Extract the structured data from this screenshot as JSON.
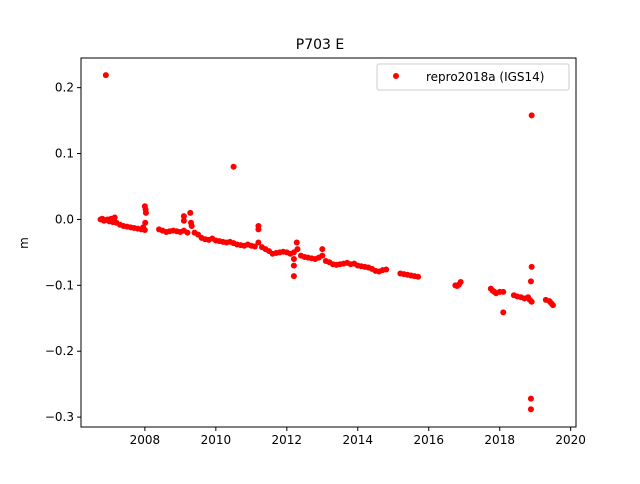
{
  "chart_data": {
    "type": "scatter",
    "title": "P703 E",
    "xlabel": "",
    "ylabel": "m",
    "xlim": [
      2006.2,
      2020.15
    ],
    "ylim": [
      -0.315,
      0.245
    ],
    "xticks": [
      2008,
      2010,
      2012,
      2014,
      2016,
      2018,
      2020
    ],
    "yticks": [
      0.2,
      0.1,
      0.0,
      -0.1,
      -0.2,
      -0.3
    ],
    "ytick_labels": [
      "0.2",
      "0.1",
      "0.0",
      "−0.1",
      "−0.2",
      "−0.3"
    ],
    "grid": false,
    "legend_position": "top-right",
    "series": [
      {
        "name": "repro2018a (IGS14)",
        "color": "#ff0000",
        "marker": "circle",
        "points": [
          [
            2006.75,
            0.0
          ],
          [
            2006.8,
            0.001
          ],
          [
            2006.85,
            -0.002
          ],
          [
            2006.9,
            -0.001
          ],
          [
            2006.95,
            0.0
          ],
          [
            2007.0,
            -0.003
          ],
          [
            2007.05,
            0.001
          ],
          [
            2007.1,
            -0.004
          ],
          [
            2007.15,
            0.003
          ],
          [
            2007.2,
            -0.005
          ],
          [
            2007.3,
            -0.008
          ],
          [
            2007.4,
            -0.01
          ],
          [
            2007.5,
            -0.011
          ],
          [
            2007.6,
            -0.012
          ],
          [
            2007.7,
            -0.013
          ],
          [
            2007.8,
            -0.014
          ],
          [
            2007.9,
            -0.015
          ],
          [
            2007.95,
            -0.012
          ],
          [
            2008.0,
            -0.016
          ],
          [
            2008.0,
            0.02
          ],
          [
            2008.02,
            0.015
          ],
          [
            2008.03,
            0.01
          ],
          [
            2008.01,
            -0.005
          ],
          [
            2006.9,
            0.219
          ],
          [
            2008.4,
            -0.015
          ],
          [
            2008.5,
            -0.017
          ],
          [
            2008.6,
            -0.019
          ],
          [
            2008.7,
            -0.018
          ],
          [
            2008.8,
            -0.017
          ],
          [
            2008.9,
            -0.018
          ],
          [
            2009.0,
            -0.019
          ],
          [
            2009.1,
            -0.017
          ],
          [
            2009.1,
            0.005
          ],
          [
            2009.1,
            -0.002
          ],
          [
            2009.2,
            -0.02
          ],
          [
            2009.28,
            0.01
          ],
          [
            2009.3,
            -0.005
          ],
          [
            2009.32,
            -0.01
          ],
          [
            2009.4,
            -0.02
          ],
          [
            2009.5,
            -0.023
          ],
          [
            2009.6,
            -0.028
          ],
          [
            2009.7,
            -0.03
          ],
          [
            2009.8,
            -0.031
          ],
          [
            2009.9,
            -0.029
          ],
          [
            2010.0,
            -0.032
          ],
          [
            2010.1,
            -0.033
          ],
          [
            2010.2,
            -0.034
          ],
          [
            2010.3,
            -0.035
          ],
          [
            2010.4,
            -0.034
          ],
          [
            2010.5,
            -0.036
          ],
          [
            2010.6,
            -0.038
          ],
          [
            2010.7,
            -0.039
          ],
          [
            2010.8,
            -0.04
          ],
          [
            2010.9,
            -0.038
          ],
          [
            2011.0,
            -0.04
          ],
          [
            2011.1,
            -0.041
          ],
          [
            2011.2,
            -0.01
          ],
          [
            2011.2,
            -0.015
          ],
          [
            2011.2,
            -0.035
          ],
          [
            2010.5,
            0.08
          ],
          [
            2011.3,
            -0.042
          ],
          [
            2011.4,
            -0.045
          ],
          [
            2011.5,
            -0.048
          ],
          [
            2011.6,
            -0.052
          ],
          [
            2011.7,
            -0.051
          ],
          [
            2011.8,
            -0.05
          ],
          [
            2011.9,
            -0.049
          ],
          [
            2012.0,
            -0.05
          ],
          [
            2012.1,
            -0.052
          ],
          [
            2012.2,
            -0.05
          ],
          [
            2012.2,
            -0.06
          ],
          [
            2012.2,
            -0.07
          ],
          [
            2012.2,
            -0.086
          ],
          [
            2012.28,
            -0.035
          ],
          [
            2012.3,
            -0.045
          ],
          [
            2012.4,
            -0.055
          ],
          [
            2012.5,
            -0.057
          ],
          [
            2012.6,
            -0.058
          ],
          [
            2012.7,
            -0.059
          ],
          [
            2012.8,
            -0.06
          ],
          [
            2012.9,
            -0.058
          ],
          [
            2013.0,
            -0.045
          ],
          [
            2013.0,
            -0.055
          ],
          [
            2013.1,
            -0.063
          ],
          [
            2013.2,
            -0.065
          ],
          [
            2013.3,
            -0.068
          ],
          [
            2013.4,
            -0.069
          ],
          [
            2013.5,
            -0.068
          ],
          [
            2013.6,
            -0.067
          ],
          [
            2013.7,
            -0.066
          ],
          [
            2013.8,
            -0.068
          ],
          [
            2013.9,
            -0.067
          ],
          [
            2014.0,
            -0.07
          ],
          [
            2014.1,
            -0.071
          ],
          [
            2014.2,
            -0.072
          ],
          [
            2014.3,
            -0.073
          ],
          [
            2014.4,
            -0.075
          ],
          [
            2014.5,
            -0.078
          ],
          [
            2014.6,
            -0.079
          ],
          [
            2014.7,
            -0.077
          ],
          [
            2014.8,
            -0.076
          ],
          [
            2015.2,
            -0.082
          ],
          [
            2015.3,
            -0.083
          ],
          [
            2015.4,
            -0.084
          ],
          [
            2015.5,
            -0.085
          ],
          [
            2015.6,
            -0.086
          ],
          [
            2015.7,
            -0.087
          ],
          [
            2016.75,
            -0.1
          ],
          [
            2016.8,
            -0.101
          ],
          [
            2016.85,
            -0.099
          ],
          [
            2016.9,
            -0.095
          ],
          [
            2017.75,
            -0.105
          ],
          [
            2017.8,
            -0.108
          ],
          [
            2017.85,
            -0.11
          ],
          [
            2017.9,
            -0.112
          ],
          [
            2018.0,
            -0.11
          ],
          [
            2018.1,
            -0.11
          ],
          [
            2018.1,
            -0.141
          ],
          [
            2018.4,
            -0.115
          ],
          [
            2018.5,
            -0.117
          ],
          [
            2018.6,
            -0.118
          ],
          [
            2018.7,
            -0.12
          ],
          [
            2018.8,
            -0.118
          ],
          [
            2018.85,
            -0.122
          ],
          [
            2018.9,
            -0.125
          ],
          [
            2018.9,
            -0.072
          ],
          [
            2018.88,
            -0.094
          ],
          [
            2018.88,
            -0.272
          ],
          [
            2018.88,
            -0.288
          ],
          [
            2018.9,
            0.158
          ],
          [
            2019.3,
            -0.122
          ],
          [
            2019.4,
            -0.124
          ],
          [
            2019.45,
            -0.127
          ],
          [
            2019.5,
            -0.13
          ]
        ]
      }
    ]
  }
}
